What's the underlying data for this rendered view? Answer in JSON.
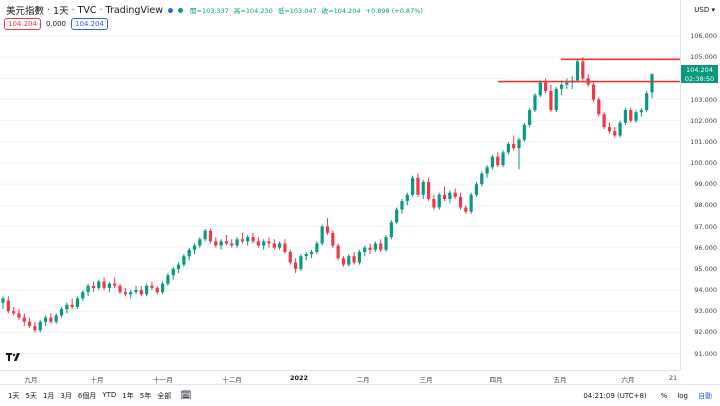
{
  "header": {
    "title": "美元指數",
    "interval": "1天",
    "exchange": "TVC",
    "source": "TradingView",
    "open": "開=103.337",
    "high": "高=104.230",
    "low": "低=103.047",
    "close": "收=104.204",
    "change": "+0.898 (+0.87%)"
  },
  "indicator": {
    "value_red": "104.204",
    "value_mid": "0.000",
    "value_blue": "104.204"
  },
  "price_axis": {
    "currency": "USD",
    "labels": [
      "106.000",
      "105.000",
      "104.000",
      "103.000",
      "102.000",
      "101.000",
      "100.000",
      "99.000",
      "98.000",
      "97.000",
      "96.000",
      "95.000",
      "94.000",
      "93.000",
      "92.000",
      "91.000"
    ],
    "last_price": "104.204",
    "countdown": "02:38:50"
  },
  "time_axis": [
    "九月",
    "十月",
    "十一月",
    "十二月",
    "2022",
    "二月",
    "三月",
    "四月",
    "五月",
    "六月",
    "21"
  ],
  "bottom": {
    "ranges": [
      "1天",
      "5天",
      "1月",
      "3月",
      "6個月",
      "YTD",
      "1年",
      "5年",
      "全部"
    ],
    "clock": "04:21:09 (UTC+8)",
    "percent": "%",
    "log": "log",
    "auto": "自動"
  },
  "colors": {
    "up": "#089981",
    "down": "#f23645",
    "hline": "#e53935",
    "blue": "#2962ff"
  },
  "chart_data": {
    "type": "candlestick",
    "ylim": [
      90.6,
      106.0
    ],
    "grid": true,
    "hlines": [
      104.9,
      103.85
    ],
    "series": [
      {
        "o": 93.4,
        "h": 93.7,
        "l": 93.1,
        "c": 93.6
      },
      {
        "o": 93.5,
        "h": 93.7,
        "l": 92.9,
        "c": 93.0
      },
      {
        "o": 93.0,
        "h": 93.2,
        "l": 92.8,
        "c": 92.9
      },
      {
        "o": 92.9,
        "h": 93.1,
        "l": 92.6,
        "c": 92.7
      },
      {
        "o": 92.7,
        "h": 92.9,
        "l": 92.3,
        "c": 92.5
      },
      {
        "o": 92.5,
        "h": 92.7,
        "l": 92.2,
        "c": 92.3
      },
      {
        "o": 92.3,
        "h": 92.5,
        "l": 92.0,
        "c": 92.1
      },
      {
        "o": 92.1,
        "h": 92.6,
        "l": 92.0,
        "c": 92.5
      },
      {
        "o": 92.5,
        "h": 92.8,
        "l": 92.3,
        "c": 92.7
      },
      {
        "o": 92.7,
        "h": 92.9,
        "l": 92.4,
        "c": 92.5
      },
      {
        "o": 92.5,
        "h": 92.9,
        "l": 92.4,
        "c": 92.8
      },
      {
        "o": 92.8,
        "h": 93.2,
        "l": 92.7,
        "c": 93.1
      },
      {
        "o": 93.1,
        "h": 93.4,
        "l": 92.9,
        "c": 93.3
      },
      {
        "o": 93.3,
        "h": 93.6,
        "l": 93.1,
        "c": 93.2
      },
      {
        "o": 93.2,
        "h": 93.7,
        "l": 93.1,
        "c": 93.6
      },
      {
        "o": 93.6,
        "h": 94.0,
        "l": 93.5,
        "c": 93.9
      },
      {
        "o": 93.9,
        "h": 94.3,
        "l": 93.7,
        "c": 94.2
      },
      {
        "o": 94.2,
        "h": 94.4,
        "l": 93.9,
        "c": 94.1
      },
      {
        "o": 94.1,
        "h": 94.5,
        "l": 94.0,
        "c": 94.4
      },
      {
        "o": 94.4,
        "h": 94.6,
        "l": 94.0,
        "c": 94.1
      },
      {
        "o": 94.1,
        "h": 94.4,
        "l": 93.9,
        "c": 94.3
      },
      {
        "o": 94.3,
        "h": 94.6,
        "l": 94.1,
        "c": 94.2
      },
      {
        "o": 94.2,
        "h": 94.3,
        "l": 93.8,
        "c": 93.9
      },
      {
        "o": 93.9,
        "h": 94.1,
        "l": 93.7,
        "c": 93.8
      },
      {
        "o": 93.8,
        "h": 94.0,
        "l": 93.6,
        "c": 93.9
      },
      {
        "o": 93.9,
        "h": 94.2,
        "l": 93.8,
        "c": 94.0
      },
      {
        "o": 94.0,
        "h": 94.2,
        "l": 93.7,
        "c": 93.8
      },
      {
        "o": 93.8,
        "h": 94.3,
        "l": 93.7,
        "c": 94.2
      },
      {
        "o": 94.2,
        "h": 94.4,
        "l": 94.0,
        "c": 94.1
      },
      {
        "o": 94.1,
        "h": 94.2,
        "l": 93.8,
        "c": 93.9
      },
      {
        "o": 93.9,
        "h": 94.4,
        "l": 93.8,
        "c": 94.3
      },
      {
        "o": 94.3,
        "h": 94.8,
        "l": 94.2,
        "c": 94.7
      },
      {
        "o": 94.7,
        "h": 95.1,
        "l": 94.5,
        "c": 95.0
      },
      {
        "o": 95.0,
        "h": 95.3,
        "l": 94.8,
        "c": 95.2
      },
      {
        "o": 95.2,
        "h": 95.7,
        "l": 95.1,
        "c": 95.6
      },
      {
        "o": 95.6,
        "h": 96.0,
        "l": 95.4,
        "c": 95.9
      },
      {
        "o": 95.9,
        "h": 96.2,
        "l": 95.7,
        "c": 96.1
      },
      {
        "o": 96.1,
        "h": 96.5,
        "l": 96.0,
        "c": 96.4
      },
      {
        "o": 96.4,
        "h": 96.9,
        "l": 96.3,
        "c": 96.8
      },
      {
        "o": 96.8,
        "h": 96.9,
        "l": 96.2,
        "c": 96.3
      },
      {
        "o": 96.3,
        "h": 96.5,
        "l": 96.0,
        "c": 96.1
      },
      {
        "o": 96.1,
        "h": 96.4,
        "l": 95.9,
        "c": 96.3
      },
      {
        "o": 96.3,
        "h": 96.6,
        "l": 96.1,
        "c": 96.2
      },
      {
        "o": 96.2,
        "h": 96.4,
        "l": 96.0,
        "c": 96.1
      },
      {
        "o": 96.1,
        "h": 96.5,
        "l": 96.0,
        "c": 96.4
      },
      {
        "o": 96.4,
        "h": 96.7,
        "l": 96.2,
        "c": 96.3
      },
      {
        "o": 96.3,
        "h": 96.6,
        "l": 96.1,
        "c": 96.5
      },
      {
        "o": 96.5,
        "h": 96.7,
        "l": 96.2,
        "c": 96.3
      },
      {
        "o": 96.3,
        "h": 96.5,
        "l": 96.0,
        "c": 96.1
      },
      {
        "o": 96.1,
        "h": 96.4,
        "l": 95.9,
        "c": 96.3
      },
      {
        "o": 96.3,
        "h": 96.5,
        "l": 96.0,
        "c": 96.2
      },
      {
        "o": 96.2,
        "h": 96.4,
        "l": 95.9,
        "c": 96.0
      },
      {
        "o": 96.0,
        "h": 96.3,
        "l": 95.9,
        "c": 96.2
      },
      {
        "o": 96.2,
        "h": 96.4,
        "l": 95.7,
        "c": 95.8
      },
      {
        "o": 95.8,
        "h": 95.9,
        "l": 95.2,
        "c": 95.3
      },
      {
        "o": 95.3,
        "h": 95.5,
        "l": 94.8,
        "c": 95.0
      },
      {
        "o": 95.0,
        "h": 95.7,
        "l": 94.9,
        "c": 95.6
      },
      {
        "o": 95.6,
        "h": 95.8,
        "l": 95.4,
        "c": 95.7
      },
      {
        "o": 95.7,
        "h": 95.9,
        "l": 95.5,
        "c": 95.8
      },
      {
        "o": 95.8,
        "h": 96.3,
        "l": 95.7,
        "c": 96.2
      },
      {
        "o": 96.2,
        "h": 97.1,
        "l": 96.1,
        "c": 97.0
      },
      {
        "o": 97.0,
        "h": 97.4,
        "l": 96.6,
        "c": 96.7
      },
      {
        "o": 96.7,
        "h": 96.8,
        "l": 96.0,
        "c": 96.1
      },
      {
        "o": 96.1,
        "h": 96.2,
        "l": 95.4,
        "c": 95.5
      },
      {
        "o": 95.5,
        "h": 95.6,
        "l": 95.1,
        "c": 95.2
      },
      {
        "o": 95.2,
        "h": 95.7,
        "l": 95.1,
        "c": 95.6
      },
      {
        "o": 95.6,
        "h": 95.8,
        "l": 95.2,
        "c": 95.3
      },
      {
        "o": 95.3,
        "h": 95.9,
        "l": 95.2,
        "c": 95.8
      },
      {
        "o": 95.8,
        "h": 96.1,
        "l": 95.6,
        "c": 96.0
      },
      {
        "o": 96.0,
        "h": 96.2,
        "l": 95.7,
        "c": 95.9
      },
      {
        "o": 95.9,
        "h": 96.3,
        "l": 95.8,
        "c": 96.2
      },
      {
        "o": 96.2,
        "h": 96.4,
        "l": 95.8,
        "c": 95.9
      },
      {
        "o": 95.9,
        "h": 96.6,
        "l": 95.8,
        "c": 96.5
      },
      {
        "o": 96.5,
        "h": 97.3,
        "l": 96.4,
        "c": 97.2
      },
      {
        "o": 97.2,
        "h": 97.9,
        "l": 97.1,
        "c": 97.8
      },
      {
        "o": 97.8,
        "h": 98.3,
        "l": 97.6,
        "c": 98.2
      },
      {
        "o": 98.2,
        "h": 98.6,
        "l": 98.0,
        "c": 98.5
      },
      {
        "o": 98.5,
        "h": 99.4,
        "l": 98.4,
        "c": 99.3
      },
      {
        "o": 99.3,
        "h": 99.5,
        "l": 98.4,
        "c": 98.5
      },
      {
        "o": 98.5,
        "h": 99.2,
        "l": 98.3,
        "c": 99.1
      },
      {
        "o": 99.1,
        "h": 99.3,
        "l": 98.2,
        "c": 98.3
      },
      {
        "o": 98.3,
        "h": 98.5,
        "l": 97.8,
        "c": 97.9
      },
      {
        "o": 97.9,
        "h": 98.6,
        "l": 97.8,
        "c": 98.5
      },
      {
        "o": 98.5,
        "h": 98.9,
        "l": 98.2,
        "c": 98.3
      },
      {
        "o": 98.3,
        "h": 98.7,
        "l": 98.1,
        "c": 98.6
      },
      {
        "o": 98.6,
        "h": 98.8,
        "l": 98.3,
        "c": 98.4
      },
      {
        "o": 98.4,
        "h": 98.6,
        "l": 97.8,
        "c": 97.9
      },
      {
        "o": 97.9,
        "h": 98.0,
        "l": 97.6,
        "c": 97.7
      },
      {
        "o": 97.7,
        "h": 98.6,
        "l": 97.6,
        "c": 98.5
      },
      {
        "o": 98.5,
        "h": 99.1,
        "l": 98.4,
        "c": 99.0
      },
      {
        "o": 99.0,
        "h": 99.6,
        "l": 98.9,
        "c": 99.5
      },
      {
        "o": 99.5,
        "h": 99.9,
        "l": 99.3,
        "c": 99.8
      },
      {
        "o": 99.8,
        "h": 100.4,
        "l": 99.7,
        "c": 100.3
      },
      {
        "o": 100.3,
        "h": 100.5,
        "l": 99.8,
        "c": 99.9
      },
      {
        "o": 99.9,
        "h": 100.6,
        "l": 99.8,
        "c": 100.5
      },
      {
        "o": 100.5,
        "h": 101.0,
        "l": 100.4,
        "c": 100.9
      },
      {
        "o": 100.9,
        "h": 101.3,
        "l": 100.6,
        "c": 100.7
      },
      {
        "o": 100.7,
        "h": 101.2,
        "l": 99.7,
        "c": 101.1
      },
      {
        "o": 101.1,
        "h": 101.9,
        "l": 101.0,
        "c": 101.8
      },
      {
        "o": 101.8,
        "h": 102.6,
        "l": 101.7,
        "c": 102.5
      },
      {
        "o": 102.5,
        "h": 103.3,
        "l": 102.4,
        "c": 103.2
      },
      {
        "o": 103.2,
        "h": 103.9,
        "l": 103.1,
        "c": 103.8
      },
      {
        "o": 103.8,
        "h": 104.0,
        "l": 103.3,
        "c": 103.4
      },
      {
        "o": 103.4,
        "h": 103.7,
        "l": 102.4,
        "c": 102.5
      },
      {
        "o": 102.5,
        "h": 103.6,
        "l": 102.4,
        "c": 103.5
      },
      {
        "o": 103.5,
        "h": 103.9,
        "l": 103.2,
        "c": 103.7
      },
      {
        "o": 103.7,
        "h": 104.0,
        "l": 103.5,
        "c": 103.8
      },
      {
        "o": 103.8,
        "h": 104.1,
        "l": 103.5,
        "c": 103.9
      },
      {
        "o": 103.9,
        "h": 104.9,
        "l": 103.8,
        "c": 104.8
      },
      {
        "o": 104.8,
        "h": 105.0,
        "l": 103.9,
        "c": 104.0
      },
      {
        "o": 104.0,
        "h": 104.2,
        "l": 103.6,
        "c": 103.7
      },
      {
        "o": 103.7,
        "h": 103.8,
        "l": 102.9,
        "c": 103.0
      },
      {
        "o": 103.0,
        "h": 103.1,
        "l": 102.2,
        "c": 102.3
      },
      {
        "o": 102.3,
        "h": 102.4,
        "l": 101.6,
        "c": 101.7
      },
      {
        "o": 101.7,
        "h": 101.9,
        "l": 101.4,
        "c": 101.5
      },
      {
        "o": 101.5,
        "h": 101.7,
        "l": 101.2,
        "c": 101.3
      },
      {
        "o": 101.3,
        "h": 102.0,
        "l": 101.2,
        "c": 101.9
      },
      {
        "o": 101.9,
        "h": 102.6,
        "l": 101.8,
        "c": 102.5
      },
      {
        "o": 102.5,
        "h": 102.6,
        "l": 101.9,
        "c": 102.0
      },
      {
        "o": 102.0,
        "h": 102.5,
        "l": 101.9,
        "c": 102.4
      },
      {
        "o": 102.4,
        "h": 102.6,
        "l": 102.2,
        "c": 102.5
      },
      {
        "o": 102.5,
        "h": 103.4,
        "l": 102.4,
        "c": 103.3
      },
      {
        "o": 103.337,
        "h": 104.23,
        "l": 103.047,
        "c": 104.204
      }
    ]
  }
}
